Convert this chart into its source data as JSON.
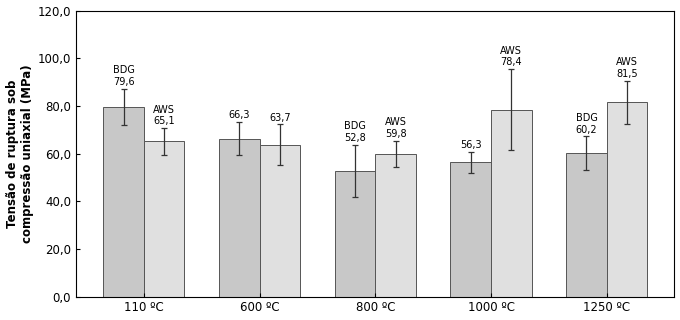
{
  "categories": [
    "110 ºC",
    "600 ºC",
    "800 ºC",
    "1000 ºC",
    "1250 ºC"
  ],
  "BDG_values": [
    79.6,
    66.3,
    52.8,
    56.3,
    60.2
  ],
  "AWS_values": [
    65.1,
    63.7,
    59.8,
    78.4,
    81.5
  ],
  "BDG_errors": [
    7.5,
    7.0,
    11.0,
    4.5,
    7.0
  ],
  "AWS_errors": [
    5.5,
    8.5,
    5.5,
    17.0,
    9.0
  ],
  "BDG_annot_top": [
    "BDG",
    "66,3",
    "BDG",
    "56,3",
    "BDG"
  ],
  "BDG_annot_val": [
    "79,6",
    null,
    "52,8",
    null,
    "60,2"
  ],
  "AWS_annot_top": [
    "AWS",
    "63,7",
    "AWS",
    "AWS",
    "AWS"
  ],
  "AWS_annot_val": [
    "65,1",
    null,
    "59,8",
    "78,4",
    "81,5"
  ],
  "ylabel": "Tensão de ruptura sob\ncompressão uniaxial (MPa)",
  "ylim": [
    0,
    120
  ],
  "yticks": [
    0,
    20,
    40,
    60,
    80,
    100,
    120
  ],
  "ytick_labels": [
    "0,0",
    "20,0",
    "40,0",
    "60,0",
    "80,0",
    "100,0",
    "120,0"
  ],
  "bar_color_BDG": "#c8c8c8",
  "bar_color_AWS": "#e0e0e0",
  "bar_width": 0.35,
  "background_color": "#ffffff",
  "font_size_annot": 7,
  "font_size_axis": 8.5,
  "font_size_tick": 8.5,
  "text_color": "#000000"
}
